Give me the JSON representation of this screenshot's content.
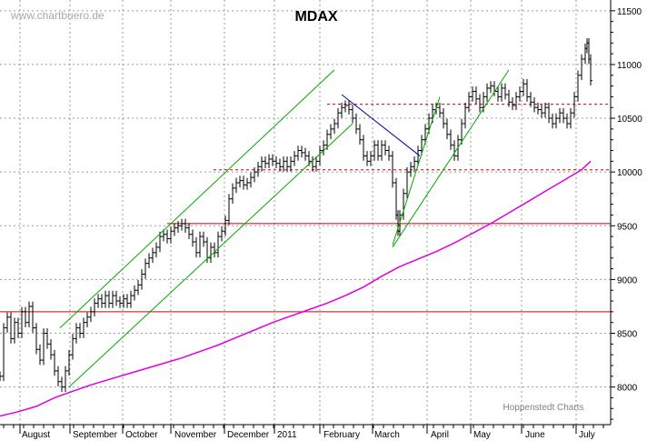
{
  "chart_data": {
    "type": "ohlc",
    "title": "MDAX",
    "watermark": "www.chartbuero.de",
    "credit": "Hoppenstedt Charts",
    "ylim": [
      7650,
      11600
    ],
    "yticks": [
      8000,
      8500,
      9000,
      9500,
      10000,
      10500,
      11000,
      11500
    ],
    "ytick_labels": [
      "8000",
      "8500",
      "9000",
      "9500",
      "10000",
      "10500",
      "11000",
      "11500"
    ],
    "months": [
      "August",
      "September",
      "October",
      "November",
      "December",
      "2011",
      "February",
      "March",
      "April",
      "May",
      "June",
      "July"
    ],
    "price_series": {
      "name": "MDAX daily",
      "color": "#000000",
      "points": [
        [
          0,
          8100
        ],
        [
          4,
          8550
        ],
        [
          8,
          8650
        ],
        [
          12,
          8450
        ],
        [
          16,
          8600
        ],
        [
          20,
          8500
        ],
        [
          24,
          8700
        ],
        [
          28,
          8600
        ],
        [
          32,
          8750
        ],
        [
          36,
          8550
        ],
        [
          40,
          8350
        ],
        [
          44,
          8250
        ],
        [
          48,
          8500
        ],
        [
          52,
          8400
        ],
        [
          56,
          8300
        ],
        [
          60,
          8150
        ],
        [
          64,
          8050
        ],
        [
          68,
          8000
        ],
        [
          72,
          8150
        ],
        [
          76,
          8300
        ],
        [
          80,
          8450
        ],
        [
          84,
          8550
        ],
        [
          88,
          8500
        ],
        [
          92,
          8600
        ],
        [
          96,
          8650
        ],
        [
          100,
          8700
        ],
        [
          104,
          8780
        ],
        [
          108,
          8820
        ],
        [
          112,
          8780
        ],
        [
          116,
          8850
        ],
        [
          120,
          8780
        ],
        [
          124,
          8850
        ],
        [
          128,
          8800
        ],
        [
          132,
          8780
        ],
        [
          136,
          8820
        ],
        [
          140,
          8780
        ],
        [
          144,
          8850
        ],
        [
          148,
          8900
        ],
        [
          152,
          8950
        ],
        [
          156,
          9050
        ],
        [
          160,
          9150
        ],
        [
          164,
          9200
        ],
        [
          168,
          9250
        ],
        [
          172,
          9300
        ],
        [
          176,
          9400
        ],
        [
          180,
          9420
        ],
        [
          184,
          9380
        ],
        [
          188,
          9450
        ],
        [
          192,
          9480
        ],
        [
          196,
          9500
        ],
        [
          200,
          9520
        ],
        [
          204,
          9480
        ],
        [
          208,
          9420
        ],
        [
          212,
          9350
        ],
        [
          216,
          9250
        ],
        [
          220,
          9400
        ],
        [
          224,
          9350
        ],
        [
          228,
          9200
        ],
        [
          232,
          9300
        ],
        [
          236,
          9250
        ],
        [
          240,
          9400
        ],
        [
          244,
          9450
        ],
        [
          248,
          9550
        ],
        [
          252,
          9750
        ],
        [
          256,
          9850
        ],
        [
          260,
          9900
        ],
        [
          264,
          9920
        ],
        [
          268,
          9880
        ],
        [
          272,
          9900
        ],
        [
          276,
          9950
        ],
        [
          280,
          10000
        ],
        [
          284,
          10050
        ],
        [
          288,
          10100
        ],
        [
          292,
          10080
        ],
        [
          296,
          10120
        ],
        [
          300,
          10100
        ],
        [
          304,
          10080
        ],
        [
          308,
          10050
        ],
        [
          312,
          10100
        ],
        [
          316,
          10050
        ],
        [
          320,
          10100
        ],
        [
          324,
          10150
        ],
        [
          328,
          10200
        ],
        [
          332,
          10180
        ],
        [
          336,
          10150
        ],
        [
          340,
          10100
        ],
        [
          344,
          10050
        ],
        [
          348,
          10100
        ],
        [
          352,
          10200
        ],
        [
          356,
          10250
        ],
        [
          360,
          10350
        ],
        [
          364,
          10400
        ],
        [
          368,
          10450
        ],
        [
          372,
          10550
        ],
        [
          376,
          10600
        ],
        [
          380,
          10620
        ],
        [
          384,
          10580
        ],
        [
          388,
          10500
        ],
        [
          392,
          10400
        ],
        [
          396,
          10300
        ],
        [
          400,
          10150
        ],
        [
          404,
          10100
        ],
        [
          408,
          10150
        ],
        [
          412,
          10250
        ],
        [
          416,
          10150
        ],
        [
          420,
          10250
        ],
        [
          424,
          10200
        ],
        [
          428,
          10150
        ],
        [
          432,
          9900
        ],
        [
          436,
          9600
        ],
        [
          438,
          9450
        ],
        [
          440,
          9600
        ],
        [
          444,
          9800
        ],
        [
          448,
          10000
        ],
        [
          452,
          10050
        ],
        [
          456,
          10100
        ],
        [
          460,
          10200
        ],
        [
          464,
          10300
        ],
        [
          468,
          10400
        ],
        [
          472,
          10500
        ],
        [
          476,
          10580
        ],
        [
          480,
          10600
        ],
        [
          484,
          10550
        ],
        [
          488,
          10450
        ],
        [
          492,
          10350
        ],
        [
          496,
          10250
        ],
        [
          500,
          10150
        ],
        [
          504,
          10300
        ],
        [
          508,
          10450
        ],
        [
          512,
          10600
        ],
        [
          516,
          10700
        ],
        [
          520,
          10750
        ],
        [
          524,
          10680
        ],
        [
          528,
          10600
        ],
        [
          532,
          10700
        ],
        [
          536,
          10780
        ],
        [
          540,
          10800
        ],
        [
          544,
          10750
        ],
        [
          548,
          10700
        ],
        [
          552,
          10780
        ],
        [
          556,
          10720
        ],
        [
          560,
          10650
        ],
        [
          564,
          10620
        ],
        [
          568,
          10700
        ],
        [
          572,
          10750
        ],
        [
          576,
          10820
        ],
        [
          580,
          10700
        ],
        [
          584,
          10650
        ],
        [
          588,
          10600
        ],
        [
          592,
          10580
        ],
        [
          596,
          10550
        ],
        [
          600,
          10600
        ],
        [
          604,
          10500
        ],
        [
          608,
          10450
        ],
        [
          612,
          10500
        ],
        [
          616,
          10550
        ],
        [
          620,
          10500
        ],
        [
          624,
          10450
        ],
        [
          628,
          10550
        ],
        [
          632,
          10700
        ],
        [
          636,
          10900
        ],
        [
          640,
          11050
        ],
        [
          644,
          11150
        ],
        [
          646,
          11200
        ],
        [
          648,
          11050
        ],
        [
          650,
          10850
        ]
      ]
    },
    "moving_average": {
      "name": "200-day MA",
      "color": "#e000e0",
      "points": [
        [
          0,
          7730
        ],
        [
          20,
          7770
        ],
        [
          40,
          7820
        ],
        [
          60,
          7900
        ],
        [
          80,
          7960
        ],
        [
          100,
          8020
        ],
        [
          120,
          8070
        ],
        [
          140,
          8120
        ],
        [
          160,
          8170
        ],
        [
          180,
          8220
        ],
        [
          200,
          8270
        ],
        [
          220,
          8330
        ],
        [
          240,
          8390
        ],
        [
          260,
          8460
        ],
        [
          280,
          8530
        ],
        [
          300,
          8600
        ],
        [
          320,
          8660
        ],
        [
          340,
          8720
        ],
        [
          360,
          8780
        ],
        [
          380,
          8850
        ],
        [
          400,
          8930
        ],
        [
          420,
          9030
        ],
        [
          440,
          9120
        ],
        [
          460,
          9190
        ],
        [
          480,
          9260
        ],
        [
          500,
          9340
        ],
        [
          520,
          9430
        ],
        [
          540,
          9520
        ],
        [
          560,
          9620
        ],
        [
          580,
          9720
        ],
        [
          600,
          9820
        ],
        [
          620,
          9920
        ],
        [
          640,
          10020
        ],
        [
          650,
          10100
        ]
      ]
    },
    "horizontal_lines": [
      {
        "value": 8700,
        "style": "solid",
        "color": "#cc0000",
        "from_x": 0,
        "to_x": 672
      },
      {
        "value": 9520,
        "style": "solid",
        "color": "#cc0000",
        "from_x": 184,
        "to_x": 672
      },
      {
        "value": 10020,
        "style": "dashed",
        "color": "#cc0000",
        "from_x": 235,
        "to_x": 672
      },
      {
        "value": 10630,
        "style": "dashed",
        "color": "#cc0000",
        "from_x": 360,
        "to_x": 672
      }
    ],
    "trendlines": [
      {
        "color": "#00aa00",
        "from": [
          66,
          8550
        ],
        "to": [
          368,
          10950
        ]
      },
      {
        "color": "#00aa00",
        "from": [
          76,
          8000
        ],
        "to": [
          388,
          10450
        ]
      },
      {
        "color": "#00aa00",
        "from": [
          432,
          9320
        ],
        "to": [
          484,
          10700
        ]
      },
      {
        "color": "#00aa00",
        "from": [
          432,
          9300
        ],
        "to": [
          560,
          10950
        ]
      },
      {
        "color": "#0000aa",
        "from": [
          376,
          10720
        ],
        "to": [
          462,
          10150
        ]
      }
    ],
    "grid": true
  }
}
